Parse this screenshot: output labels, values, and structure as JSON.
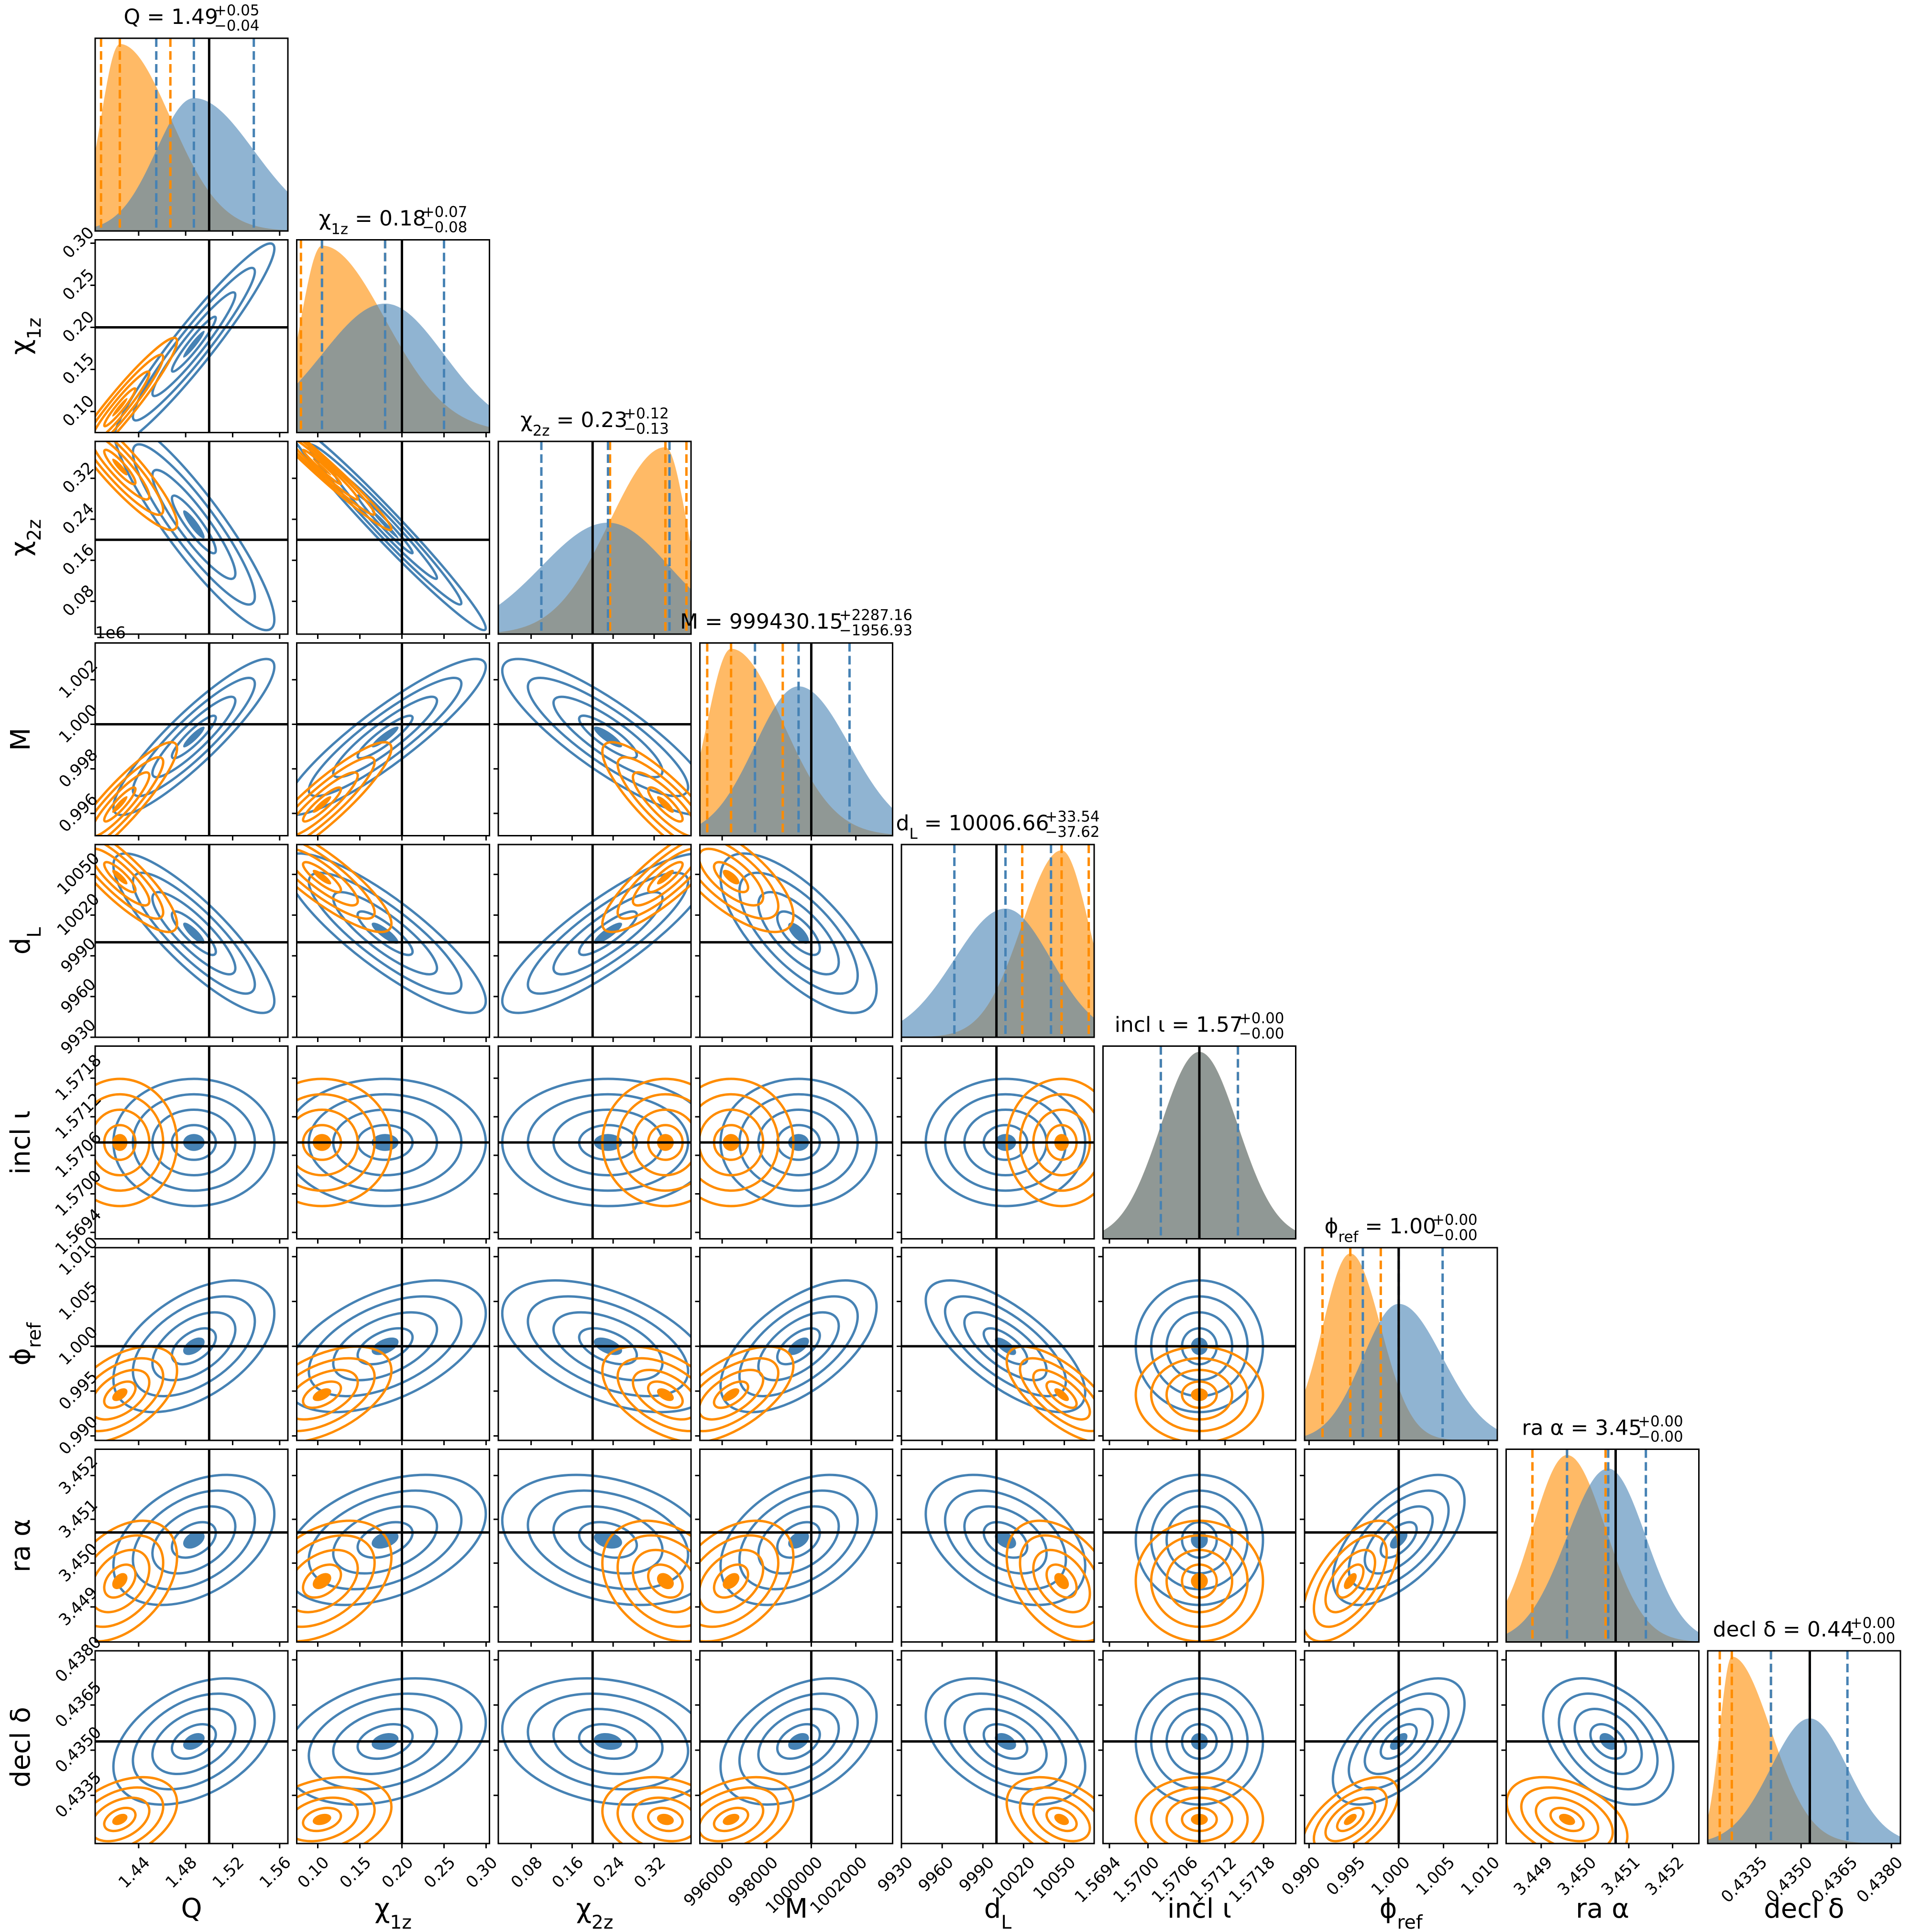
{
  "chart_data": {
    "type": "corner",
    "series": [
      {
        "color": "#4682b4"
      },
      {
        "color": "#ff8c00"
      }
    ],
    "truth_color": "#000000",
    "params": [
      {
        "label": {
          "text": "Q"
        },
        "title": {
          "center": "= 1.49",
          "plus": "+0.05",
          "minus": "−0.04"
        },
        "lim": [
          1.403,
          1.567
        ],
        "ticks": [
          1.44,
          1.48,
          1.52,
          1.56
        ],
        "truth": 1.5,
        "quantiles": [
          [
            1.455,
            1.487,
            1.538
          ],
          [
            1.408,
            1.424,
            1.467
          ]
        ]
      },
      {
        "label": {
          "text": "χ",
          "sub": "1z"
        },
        "title": {
          "center": "= 0.18",
          "plus": "+0.07",
          "minus": "−0.08"
        },
        "lim": [
          0.075,
          0.304
        ],
        "ticks": [
          {
            "value": 0.1,
            "label": "0.10"
          },
          0.15,
          {
            "value": 0.2,
            "label": "0.20"
          },
          0.25,
          {
            "value": 0.3,
            "label": "0.30"
          }
        ],
        "truth": 0.2,
        "quantiles": [
          [
            0.105,
            0.18,
            0.25
          ],
          [
            0.08,
            0.105,
            0.18
          ]
        ]
      },
      {
        "label": {
          "text": "χ",
          "sub": "2z"
        },
        "title": {
          "center": "= 0.23",
          "plus": "+0.12",
          "minus": "−0.13"
        },
        "lim": [
          0.016,
          0.392
        ],
        "ticks": [
          0.08,
          0.16,
          0.24,
          0.32
        ],
        "truth": 0.2,
        "quantiles": [
          [
            0.1,
            0.23,
            0.35
          ],
          [
            0.234,
            0.342,
            0.383
          ]
        ]
      },
      {
        "label": {
          "text": "M"
        },
        "title": {
          "center": "= 999430.15",
          "plus": "+2287.16",
          "minus": "−1956.93"
        },
        "lim": [
          995000,
          1003650
        ],
        "ticks": [
          996000,
          998000,
          1000000,
          1002000
        ],
        "yticks": [
          {
            "value": 996000,
            "label": "0.996"
          },
          {
            "value": 998000,
            "label": "0.998"
          },
          {
            "value": 1000000,
            "label": "1.000"
          },
          {
            "value": 1002000,
            "label": "1.002"
          }
        ],
        "y_offset": "1e6",
        "truth": 1000000,
        "quantiles": [
          [
            997473,
            999430,
            1001717
          ],
          [
            995330,
            996400,
            998720
          ]
        ]
      },
      {
        "label": {
          "text": "d",
          "sub": "L"
        },
        "title": {
          "center": "= 10006.66",
          "plus": "+33.54",
          "minus": "−37.62"
        },
        "lim": [
          9930,
          10072
        ],
        "ticks": [
          9930,
          9960,
          9990,
          10020,
          10050
        ],
        "truth": 10000,
        "quantiles": [
          [
            9969,
            10006.66,
            10040.2
          ],
          [
            10019,
            10048,
            10068
          ]
        ]
      },
      {
        "label": {
          "text": "incl ι"
        },
        "title": {
          "center": "= 1.57",
          "plus": "+0.00",
          "minus": "−0.00"
        },
        "lim": [
          1.5693,
          1.5723
        ],
        "ticks": [
          1.5694,
          {
            "value": 1.57,
            "label": "1.5700"
          },
          1.5706,
          1.5712,
          1.5718
        ],
        "truth": 1.5708,
        "quantiles": [
          [
            1.5702,
            1.5708,
            1.5714
          ],
          [
            1.5702,
            1.5708,
            1.5714
          ]
        ]
      },
      {
        "label": {
          "text": "ϕ",
          "sub": "ref"
        },
        "title": {
          "center": "= 1.00",
          "plus": "+0.00",
          "minus": "−0.00"
        },
        "lim": [
          0.9895,
          1.011
        ],
        "ticks": [
          {
            "value": 0.99,
            "label": "0.990"
          },
          0.995,
          {
            "value": 1,
            "label": "1.000"
          },
          1.005,
          {
            "value": 1.01,
            "label": "1.010"
          }
        ],
        "truth": 1,
        "quantiles": [
          [
            0.996,
            1.0,
            1.0049
          ],
          [
            0.9915,
            0.9946,
            0.998
          ]
        ]
      },
      {
        "label": {
          "text": "ra α"
        },
        "title": {
          "center": "= 3.45",
          "plus": "+0.00",
          "minus": "−0.00"
        },
        "lim": [
          3.4482,
          3.4526
        ],
        "ticks": [
          3.449,
          {
            "value": 3.45,
            "label": "3.450"
          },
          3.451,
          3.452
        ],
        "truth": 3.4507,
        "quantiles": [
          [
            3.44959,
            3.45053,
            3.45139
          ],
          [
            3.4488,
            3.44959,
            3.45047
          ]
        ]
      },
      {
        "label": {
          "text": "decl δ"
        },
        "title": {
          "center": "= 0.44",
          "plus": "+0.00",
          "minus": "−0.00"
        },
        "lim": [
          0.4319,
          0.4383
        ],
        "ticks": [
          0.4335,
          {
            "value": 0.435,
            "label": "0.4350"
          },
          0.4365,
          {
            "value": 0.438,
            "label": "0.4380"
          }
        ],
        "truth": 0.43529,
        "quantiles": [
          [
            0.434,
            0.43529,
            0.43654
          ],
          [
            0.4323,
            0.4327,
            0.434
          ]
        ]
      }
    ],
    "correlations": [
      [
        0.95
      ],
      [
        -0.9,
        -0.98
      ],
      [
        0.9,
        0.9,
        -0.85
      ],
      [
        -0.85,
        -0.85,
        0.85,
        -0.7
      ],
      [
        0,
        0,
        0,
        0,
        0
      ],
      [
        0.5,
        0.5,
        -0.5,
        0.6,
        -0.7,
        0
      ],
      [
        0.4,
        0.4,
        -0.3,
        0.4,
        -0.4,
        0,
        0.6
      ],
      [
        0.4,
        0.3,
        -0.2,
        0.4,
        -0.4,
        0,
        0.6,
        -0.4
      ]
    ]
  }
}
